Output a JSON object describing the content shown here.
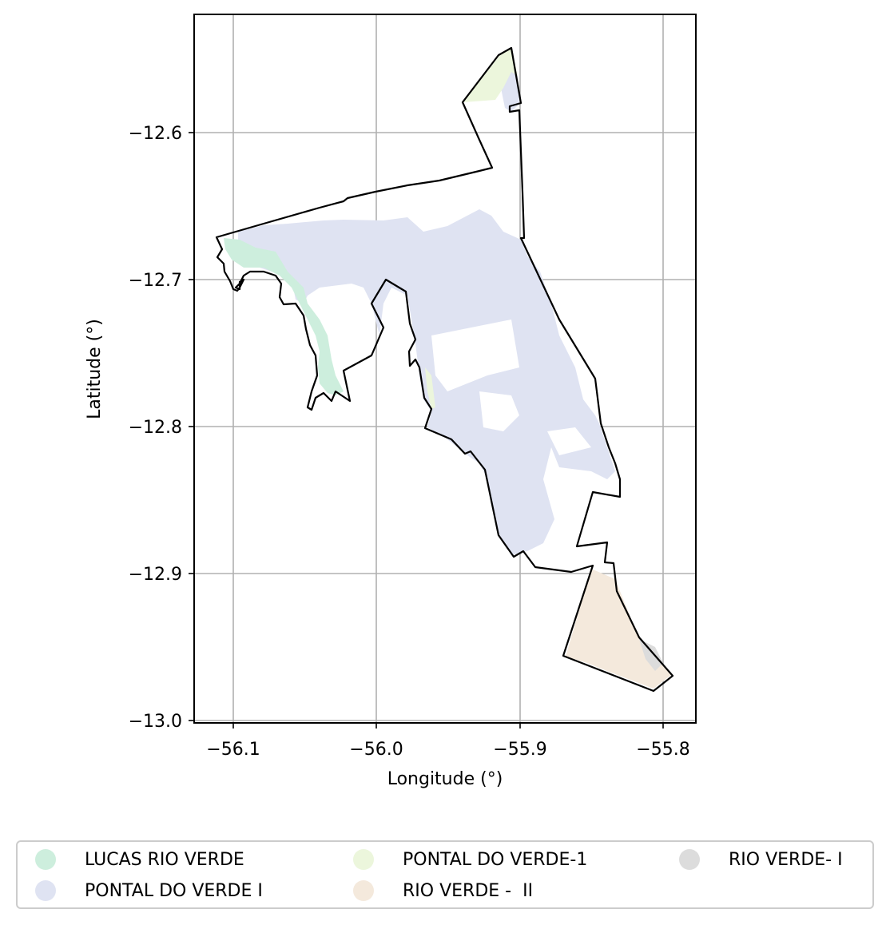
{
  "map": {
    "xlabel": "Longitude (°)",
    "ylabel": "Latitude (°)",
    "x_ticks": [
      "−56.1",
      "−56.0",
      "−55.9",
      "−55.8"
    ],
    "y_ticks": [
      "−12.6",
      "−12.7",
      "−12.8",
      "−12.9",
      "−13.0"
    ],
    "grid": true,
    "boundary_color": "#000000",
    "legend_placement": "bottom-center, below map"
  },
  "legend": {
    "items": [
      {
        "label": "LUCAS RIO VERDE",
        "color": "#cdeedd"
      },
      {
        "label": "PONTAL DO VERDE I",
        "color": "#dfe3f2"
      },
      {
        "label": "PONTAL DO VERDE-1",
        "color": "#ecf6dc"
      },
      {
        "label": "RIO VERDE -  II",
        "color": "#f4e9dc"
      },
      {
        "label": "RIO VERDE- I",
        "color": "#dcdcdc"
      }
    ]
  }
}
